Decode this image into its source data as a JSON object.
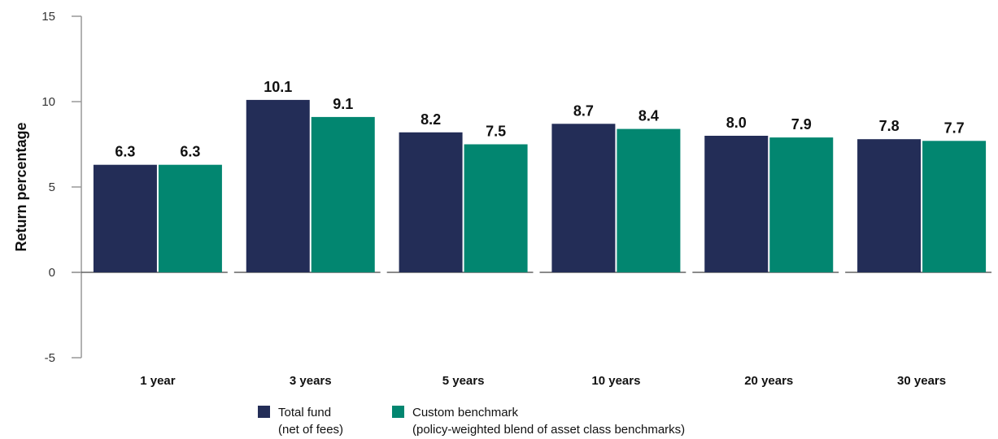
{
  "chart_data": {
    "type": "bar",
    "ylabel": "Return percentage",
    "xlabel": "",
    "ylim": [
      -5,
      15
    ],
    "yticks": [
      -5,
      0,
      5,
      10,
      15
    ],
    "categories": [
      "1 year",
      "3 years",
      "5 years",
      "10 years",
      "20 years",
      "30 years"
    ],
    "series": [
      {
        "name": "Total fund",
        "name_line2": "(net of fees)",
        "color": "#232d57",
        "values": [
          6.3,
          10.1,
          8.2,
          8.7,
          8.0,
          7.8
        ],
        "labels": [
          "6.3",
          "10.1",
          "8.2",
          "8.7",
          "8.0",
          "7.8"
        ]
      },
      {
        "name": "Custom benchmark",
        "name_line2": "(policy-weighted blend of asset class benchmarks)",
        "color": "#028670",
        "values": [
          6.3,
          9.1,
          7.5,
          8.4,
          7.9,
          7.7
        ],
        "labels": [
          "6.3",
          "9.1",
          "7.5",
          "8.4",
          "7.9",
          "7.7"
        ]
      }
    ],
    "grid": false,
    "legend_position": "bottom"
  }
}
